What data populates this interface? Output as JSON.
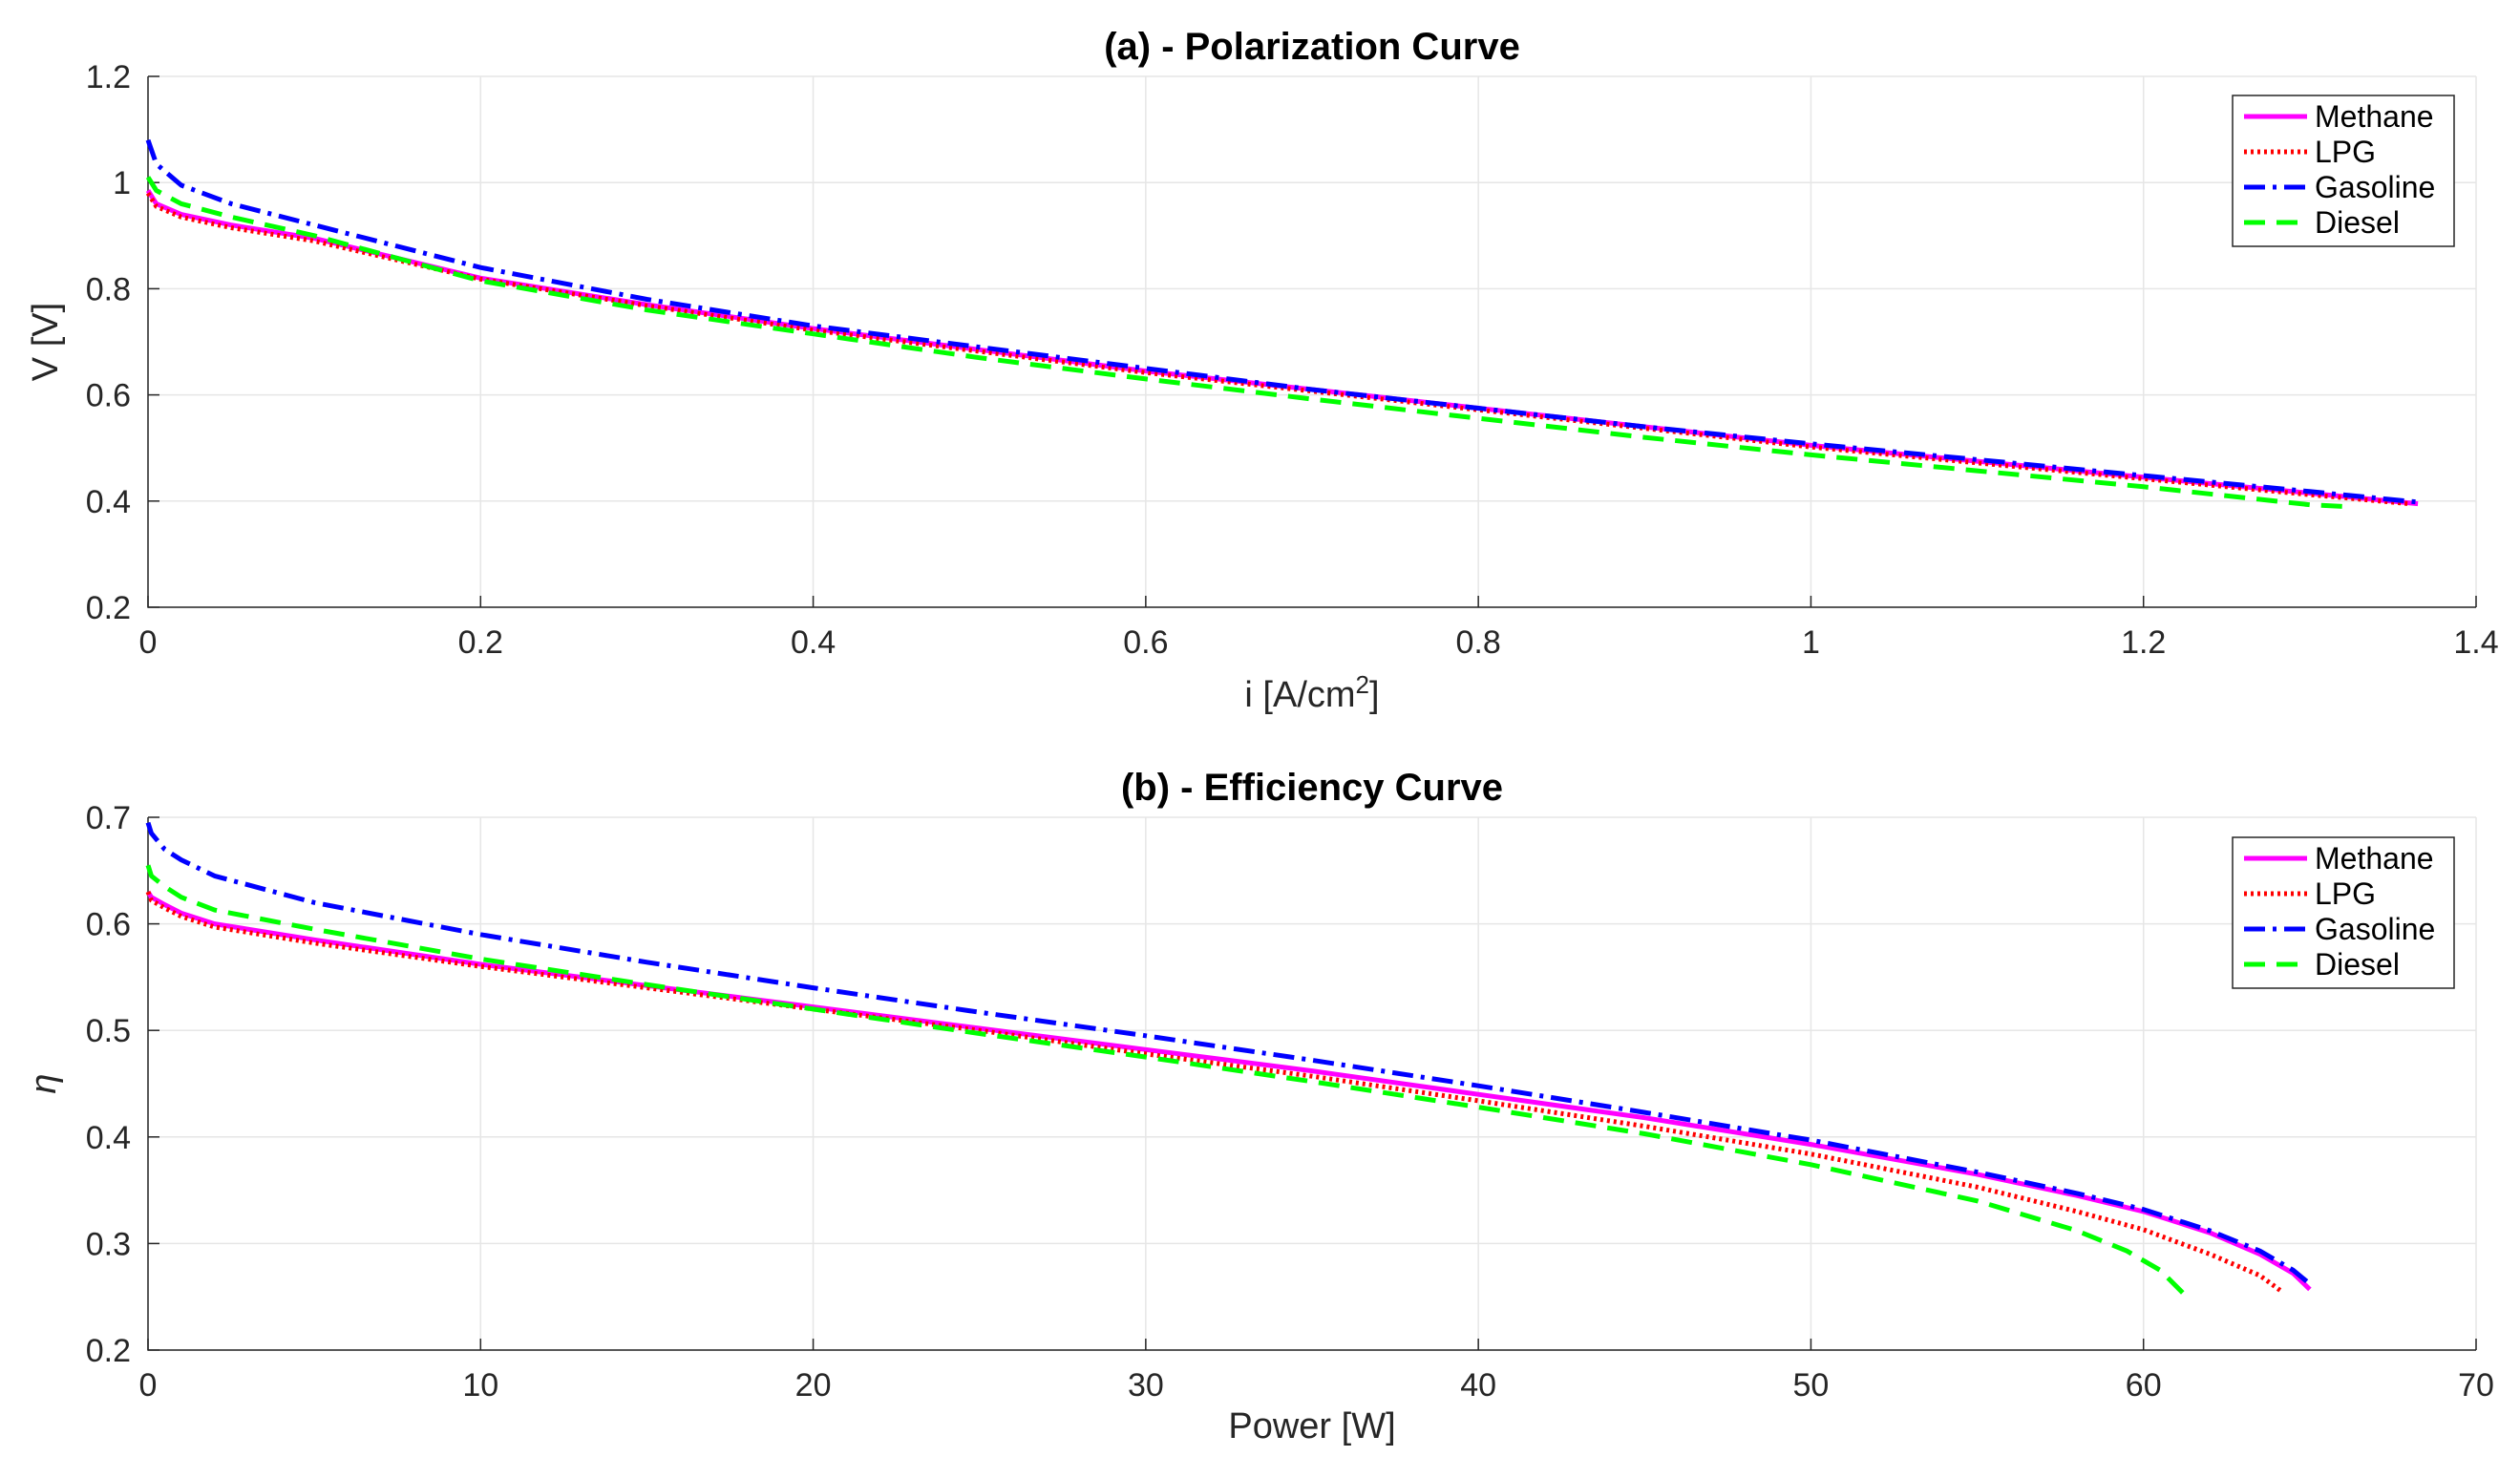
{
  "chart_data": [
    {
      "type": "line",
      "title": "(a) - Polarization Curve",
      "xlabel_main": "i [A/cm",
      "xlabel_sup": "2",
      "xlabel_tail": "]",
      "ylabel": "V [V]",
      "xlim": [
        0,
        1.4
      ],
      "ylim": [
        0.2,
        1.2
      ],
      "xticks": [
        "0",
        "0.2",
        "0.4",
        "0.6",
        "0.8",
        "1",
        "1.2",
        "1.4"
      ],
      "yticks": [
        "0.2",
        "0.4",
        "0.6",
        "0.8",
        "1",
        "1.2"
      ],
      "grid": true,
      "legend_position": "top-right",
      "series": [
        {
          "name": "Methane",
          "color": "#ff00ff",
          "style": "solid",
          "x": [
            0,
            0.005,
            0.02,
            0.05,
            0.1,
            0.2,
            0.3,
            0.4,
            0.5,
            0.6,
            0.7,
            0.8,
            0.9,
            1.0,
            1.1,
            1.2,
            1.3,
            1.365
          ],
          "y": [
            0.985,
            0.96,
            0.94,
            0.92,
            0.895,
            0.82,
            0.77,
            0.725,
            0.685,
            0.645,
            0.61,
            0.575,
            0.54,
            0.505,
            0.475,
            0.445,
            0.415,
            0.395
          ]
        },
        {
          "name": "LPG",
          "color": "#ff0000",
          "style": "dotted",
          "x": [
            0,
            0.005,
            0.02,
            0.05,
            0.1,
            0.2,
            0.3,
            0.4,
            0.5,
            0.6,
            0.7,
            0.8,
            0.9,
            1.0,
            1.1,
            1.2,
            1.3,
            1.36
          ],
          "y": [
            0.98,
            0.955,
            0.935,
            0.915,
            0.89,
            0.818,
            0.768,
            0.722,
            0.682,
            0.642,
            0.607,
            0.572,
            0.537,
            0.502,
            0.472,
            0.442,
            0.412,
            0.395
          ]
        },
        {
          "name": "Gasoline",
          "color": "#0000ff",
          "style": "dashdot",
          "x": [
            0,
            0.005,
            0.02,
            0.05,
            0.1,
            0.2,
            0.3,
            0.4,
            0.5,
            0.6,
            0.7,
            0.8,
            0.9,
            1.0,
            1.1,
            1.2,
            1.3,
            1.365
          ],
          "y": [
            1.08,
            1.035,
            0.995,
            0.96,
            0.92,
            0.84,
            0.78,
            0.73,
            0.69,
            0.65,
            0.61,
            0.575,
            0.54,
            0.508,
            0.478,
            0.448,
            0.418,
            0.398
          ]
        },
        {
          "name": "Diesel",
          "color": "#00ff00",
          "style": "dashed",
          "x": [
            0,
            0.005,
            0.02,
            0.05,
            0.1,
            0.2,
            0.3,
            0.4,
            0.5,
            0.6,
            0.7,
            0.8,
            0.9,
            1.0,
            1.1,
            1.2,
            1.3,
            1.32
          ],
          "y": [
            1.01,
            0.985,
            0.96,
            0.935,
            0.9,
            0.815,
            0.76,
            0.715,
            0.67,
            0.63,
            0.592,
            0.556,
            0.52,
            0.487,
            0.457,
            0.427,
            0.393,
            0.39
          ]
        }
      ]
    },
    {
      "type": "line",
      "title": "(b) - Efficiency Curve",
      "xlabel": "Power [W]",
      "ylabel": "η",
      "xlim": [
        0,
        70
      ],
      "ylim": [
        0.2,
        0.7
      ],
      "xticks": [
        "0",
        "10",
        "20",
        "30",
        "40",
        "50",
        "60",
        "70"
      ],
      "yticks": [
        "0.2",
        "0.3",
        "0.4",
        "0.5",
        "0.6",
        "0.7"
      ],
      "grid": true,
      "legend_position": "top-right",
      "series": [
        {
          "name": "Methane",
          "color": "#ff00ff",
          "style": "solid",
          "x": [
            0,
            0.1,
            0.5,
            1,
            2,
            5,
            10,
            15,
            20,
            25,
            30,
            35,
            40,
            45,
            50,
            55,
            58,
            60,
            62,
            63.5,
            64.5,
            65
          ],
          "y": [
            0.63,
            0.625,
            0.618,
            0.61,
            0.6,
            0.585,
            0.562,
            0.542,
            0.522,
            0.502,
            0.482,
            0.462,
            0.44,
            0.418,
            0.393,
            0.365,
            0.345,
            0.33,
            0.31,
            0.29,
            0.272,
            0.257
          ]
        },
        {
          "name": "LPG",
          "color": "#ff0000",
          "style": "dotted",
          "x": [
            0,
            0.1,
            0.5,
            1,
            2,
            5,
            10,
            15,
            20,
            25,
            30,
            35,
            40,
            45,
            50,
            55,
            58,
            60,
            62,
            63.5,
            64.2
          ],
          "y": [
            0.63,
            0.622,
            0.615,
            0.607,
            0.597,
            0.582,
            0.56,
            0.54,
            0.52,
            0.5,
            0.478,
            0.457,
            0.434,
            0.41,
            0.384,
            0.353,
            0.33,
            0.313,
            0.29,
            0.27,
            0.254
          ]
        },
        {
          "name": "Gasoline",
          "color": "#0000ff",
          "style": "dashdot",
          "x": [
            0,
            0.1,
            0.5,
            1,
            2,
            5,
            10,
            15,
            20,
            25,
            30,
            35,
            40,
            45,
            50,
            55,
            58,
            60,
            62,
            63.5,
            64.5,
            65
          ],
          "y": [
            0.695,
            0.685,
            0.67,
            0.66,
            0.645,
            0.62,
            0.59,
            0.564,
            0.54,
            0.517,
            0.495,
            0.472,
            0.448,
            0.423,
            0.397,
            0.367,
            0.347,
            0.332,
            0.312,
            0.293,
            0.275,
            0.262
          ]
        },
        {
          "name": "Diesel",
          "color": "#00ff00",
          "style": "dashed",
          "x": [
            0,
            0.1,
            0.5,
            1,
            2,
            5,
            10,
            15,
            20,
            25,
            30,
            35,
            40,
            45,
            50,
            55,
            58,
            59.5,
            60.5,
            61.3
          ],
          "y": [
            0.655,
            0.645,
            0.635,
            0.625,
            0.613,
            0.595,
            0.567,
            0.543,
            0.52,
            0.497,
            0.475,
            0.452,
            0.428,
            0.403,
            0.374,
            0.34,
            0.312,
            0.293,
            0.275,
            0.25
          ]
        }
      ]
    }
  ]
}
